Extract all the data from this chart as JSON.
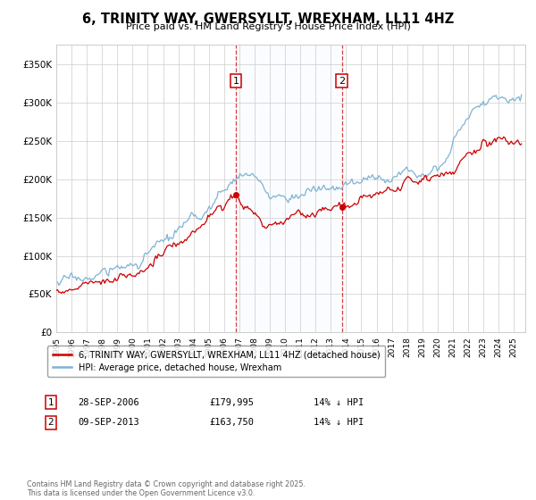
{
  "title": "6, TRINITY WAY, GWERSYLLT, WREXHAM, LL11 4HZ",
  "subtitle": "Price paid vs. HM Land Registry's House Price Index (HPI)",
  "ylim": [
    0,
    375000
  ],
  "yticks": [
    0,
    50000,
    100000,
    150000,
    200000,
    250000,
    300000,
    350000
  ],
  "ytick_labels": [
    "£0",
    "£50K",
    "£100K",
    "£150K",
    "£200K",
    "£250K",
    "£300K",
    "£350K"
  ],
  "background_color": "#ffffff",
  "grid_color": "#cccccc",
  "hpi_color": "#7fb3d3",
  "price_color": "#cc0000",
  "sale1_year": 2006.75,
  "sale1_price": 179995,
  "sale2_year": 2013.69,
  "sale2_price": 163750,
  "legend_price_label": "6, TRINITY WAY, GWERSYLLT, WREXHAM, LL11 4HZ (detached house)",
  "legend_hpi_label": "HPI: Average price, detached house, Wrexham",
  "footer": "Contains HM Land Registry data © Crown copyright and database right 2025.\nThis data is licensed under the Open Government Licence v3.0.",
  "span_color": "#ddeeff",
  "dashed_color": "#cc0000"
}
